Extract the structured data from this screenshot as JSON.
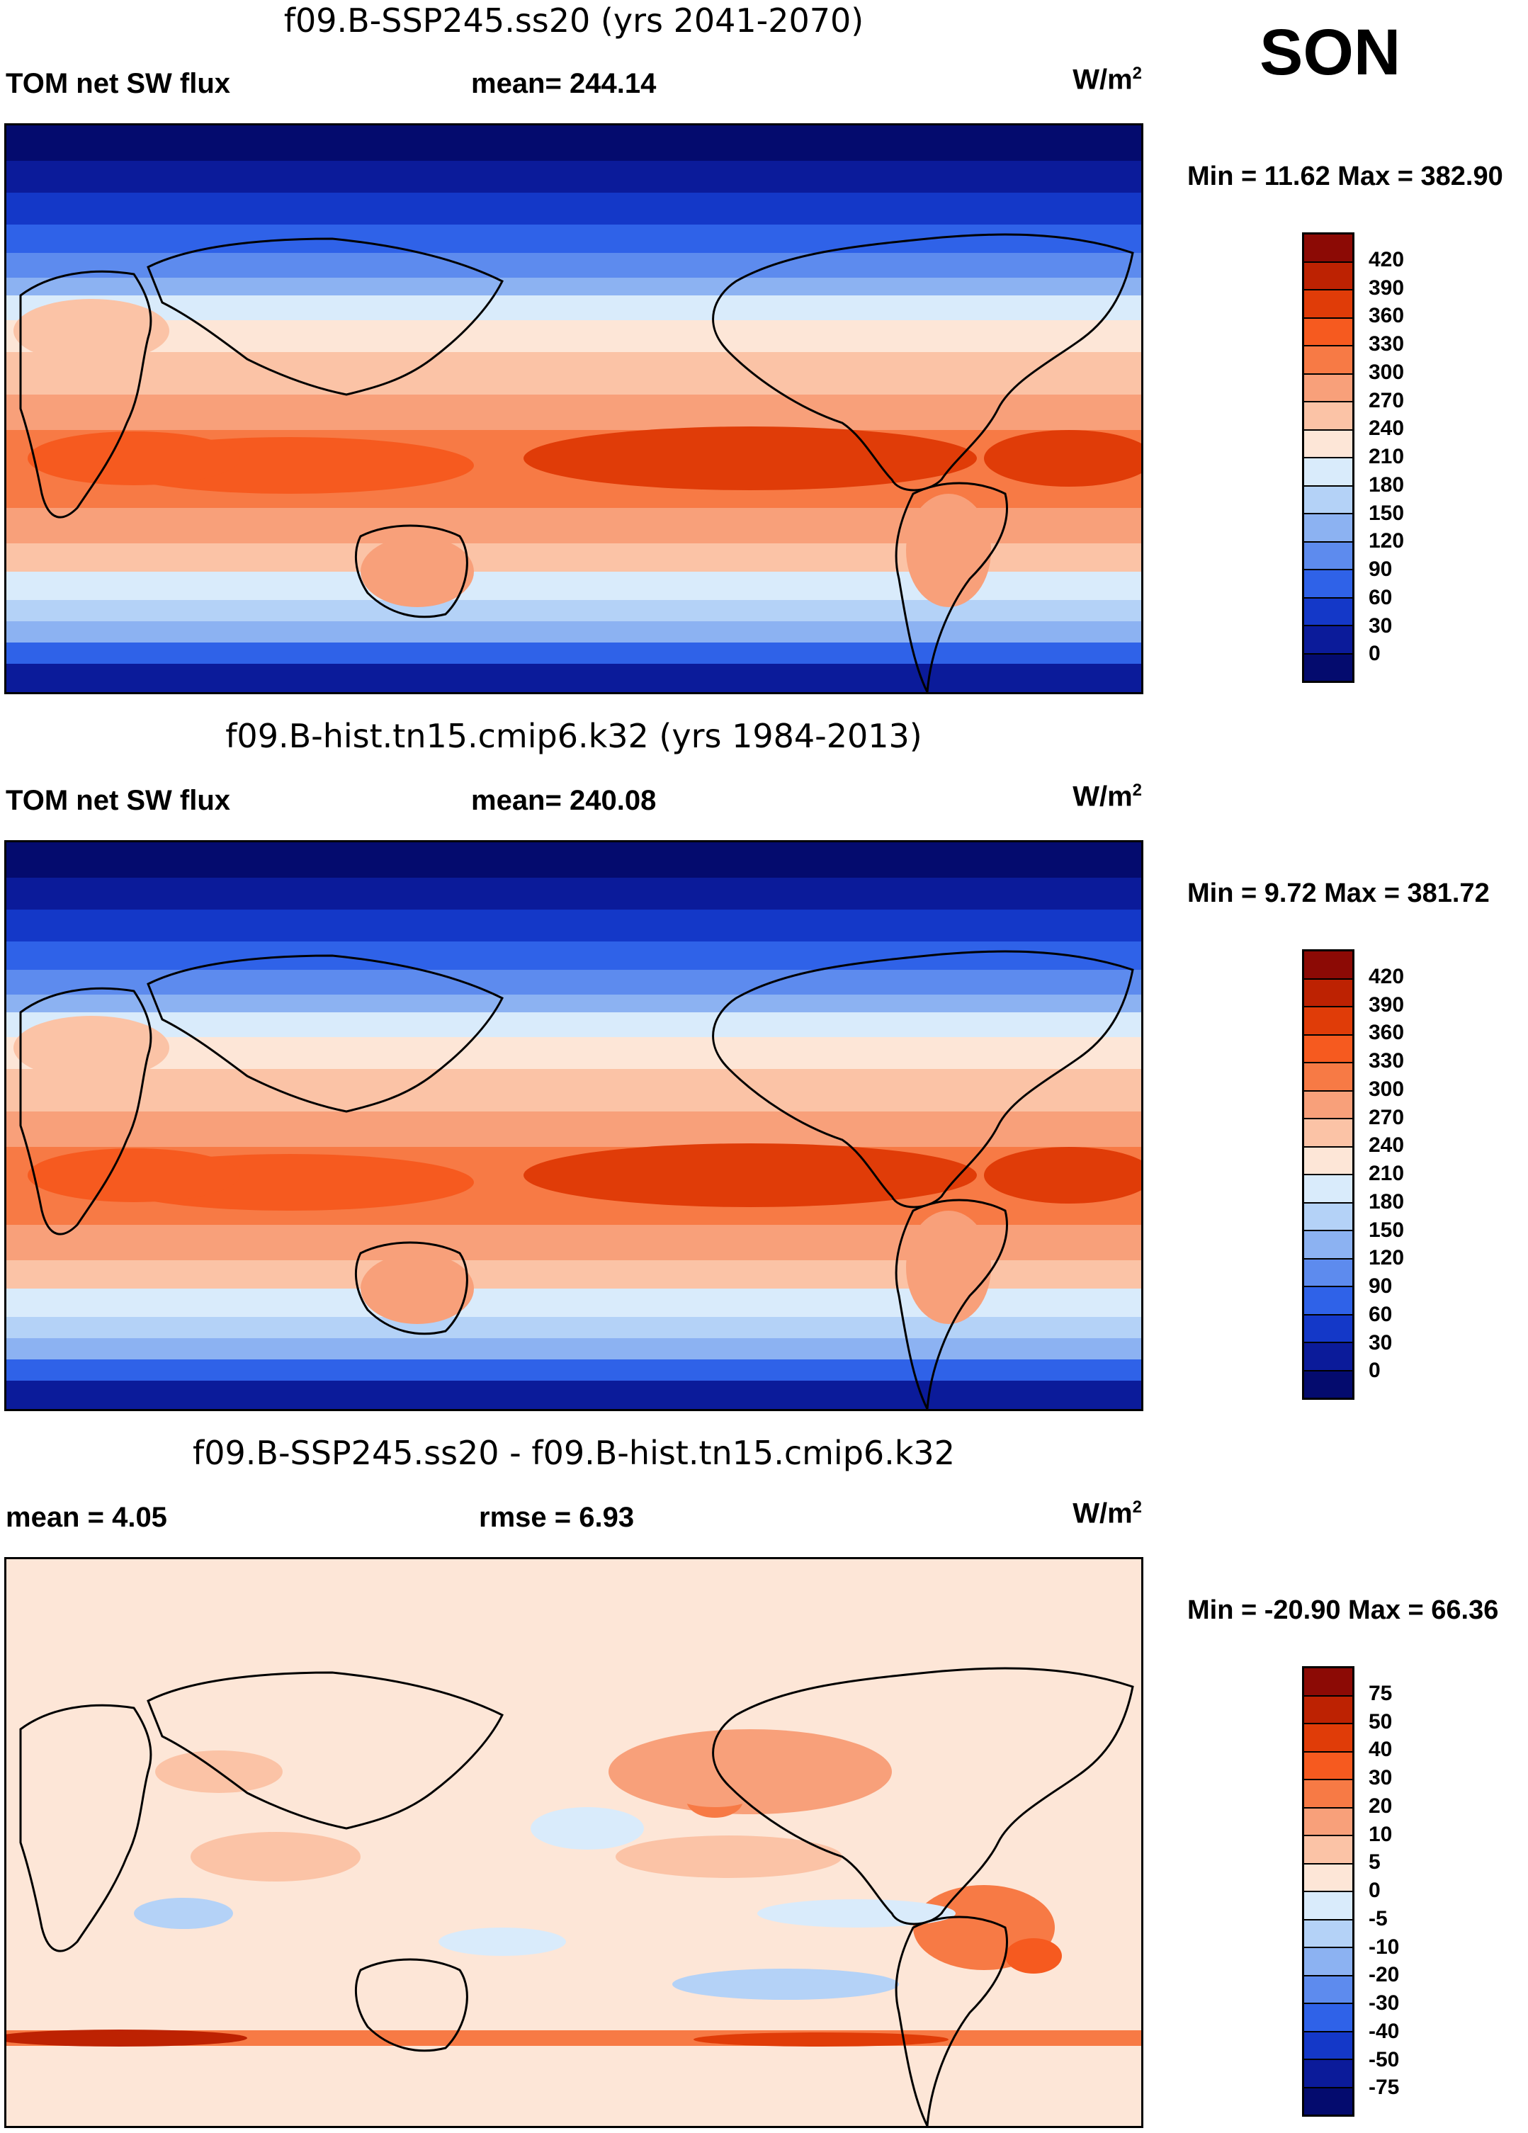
{
  "season": "SON",
  "units_base": "W/m",
  "units_exp": "2",
  "panels": [
    {
      "title": "f09.B-SSP245.ss20 (yrs 2041-2070)",
      "left_text": "TOM net SW flux",
      "mid_text": "mean= 244.14",
      "minmax": "Min =  11.62 Max = 382.90",
      "levels": [
        "420",
        "390",
        "360",
        "330",
        "300",
        "270",
        "240",
        "210",
        "180",
        "150",
        "120",
        "90",
        "60",
        "30",
        "0"
      ],
      "colors": [
        "#8c0a05",
        "#bd2202",
        "#e03c08",
        "#f65a1f",
        "#f77a45",
        "#f8a07a",
        "#fbc3a6",
        "#fde6d7",
        "#d9ebfb",
        "#b4d2f7",
        "#8cb2f2",
        "#5d8bee",
        "#2f62e8",
        "#1438c8",
        "#0b1b9a",
        "#040b6e"
      ],
      "type": "abs"
    },
    {
      "title": "f09.B-hist.tn15.cmip6.k32 (yrs 1984-2013)",
      "left_text": "TOM net SW flux",
      "mid_text": "mean= 240.08",
      "minmax": "Min =   9.72 Max = 381.72",
      "levels": [
        "420",
        "390",
        "360",
        "330",
        "300",
        "270",
        "240",
        "210",
        "180",
        "150",
        "120",
        "90",
        "60",
        "30",
        "0"
      ],
      "colors": [
        "#8c0a05",
        "#bd2202",
        "#e03c08",
        "#f65a1f",
        "#f77a45",
        "#f8a07a",
        "#fbc3a6",
        "#fde6d7",
        "#d9ebfb",
        "#b4d2f7",
        "#8cb2f2",
        "#5d8bee",
        "#2f62e8",
        "#1438c8",
        "#0b1b9a",
        "#040b6e"
      ],
      "type": "abs"
    },
    {
      "title": "f09.B-SSP245.ss20 - f09.B-hist.tn15.cmip6.k32",
      "left_text": "mean =   4.05",
      "mid_text": "rmse =   6.93",
      "minmax": "Min = -20.90 Max =  66.36",
      "levels": [
        "75",
        "50",
        "40",
        "30",
        "20",
        "10",
        "5",
        "0",
        "-5",
        "-10",
        "-20",
        "-30",
        "-40",
        "-50",
        "-75"
      ],
      "colors": [
        "#8c0a05",
        "#bd2202",
        "#e03c08",
        "#f65a1f",
        "#f77a45",
        "#f8a07a",
        "#fbc3a6",
        "#fde6d7",
        "#d9ebfb",
        "#b4d2f7",
        "#8cb2f2",
        "#5d8bee",
        "#2f62e8",
        "#1438c8",
        "#0b1b9a",
        "#040b6e"
      ],
      "type": "diff"
    }
  ]
}
